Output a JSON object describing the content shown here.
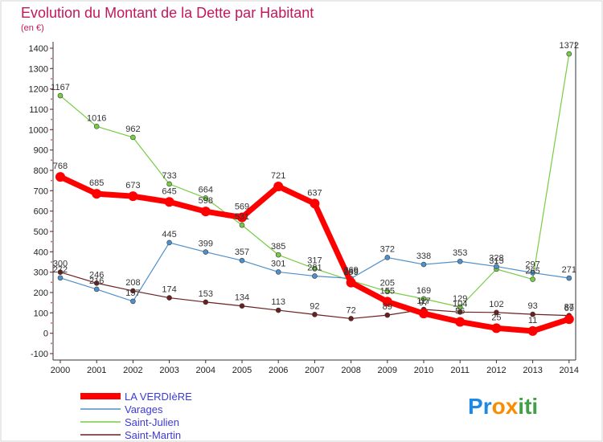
{
  "chart_data": {
    "type": "line",
    "title": "Evolution du Montant de la Dette par Habitant",
    "subtitle": "(en €)",
    "categories": [
      "2000",
      "2001",
      "2002",
      "2003",
      "2004",
      "2005",
      "2006",
      "2007",
      "2008",
      "2009",
      "2010",
      "2011",
      "2012",
      "2013",
      "2014"
    ],
    "ylim": [
      -100,
      1400
    ],
    "y_ticks": [
      -100,
      0,
      100,
      200,
      300,
      400,
      500,
      600,
      700,
      800,
      900,
      1000,
      1100,
      1200,
      1300,
      1400
    ],
    "grid": false,
    "legend_position": "bottom-left",
    "series": [
      {
        "name": "LA VERDIèRE",
        "color": "#ff0000",
        "values": [
          768,
          685,
          673,
          645,
          598,
          569,
          721,
          637,
          249,
          155,
          97,
          56,
          25,
          11,
          69
        ],
        "labels": [
          "768",
          "685",
          "673",
          "645",
          "598",
          "569",
          "721",
          "637",
          "249",
          "155",
          "97",
          "56",
          "25",
          "11",
          "69"
        ]
      },
      {
        "name": "Varages",
        "color": "#4f8fcc",
        "values": [
          272,
          216,
          157,
          445,
          399,
          357,
          301,
          281,
          269,
          372,
          338,
          353,
          328,
          297,
          271
        ],
        "labels": [
          "272",
          "216",
          "157",
          "445",
          "399",
          "357",
          "301",
          "281",
          "269",
          "372",
          "338",
          "353",
          "328",
          "297",
          "271"
        ]
      },
      {
        "name": "Saint-Julien",
        "color": "#77cc44",
        "values": [
          1167,
          1016,
          962,
          733,
          664,
          531,
          385,
          317,
          259,
          205,
          169,
          129,
          315,
          265,
          1372
        ],
        "labels": [
          "1167",
          "1016",
          "962",
          "733",
          "664",
          "531",
          "385",
          "317",
          "259",
          "205",
          "169",
          "129",
          "315",
          "265",
          "1372"
        ]
      },
      {
        "name": "Saint-Martin",
        "color": "#6b1f1f",
        "values": [
          300,
          246,
          208,
          174,
          153,
          134,
          113,
          92,
          72,
          89,
          117,
          104,
          102,
          93,
          87
        ],
        "labels": [
          "300",
          "246",
          "208",
          "174",
          "153",
          "134",
          "113",
          "92",
          "72",
          "89",
          "117",
          "104",
          "102",
          "93",
          "87"
        ]
      }
    ]
  },
  "branding": {
    "logo_text": "Proxiti",
    "logo_colors": [
      "#1e88e5",
      "#fb8c00",
      "#43a047"
    ]
  }
}
